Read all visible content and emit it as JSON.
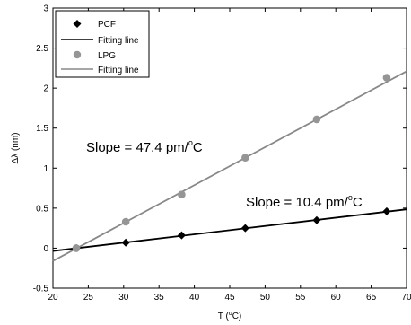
{
  "chart_data": {
    "type": "scatter",
    "xlabel_main": "T (",
    "xlabel_sup": "o",
    "xlabel_tail": "C)",
    "ylabel": "Δλ (nm)",
    "xlim": [
      20,
      70
    ],
    "ylim": [
      -0.5,
      3
    ],
    "xticks": [
      20,
      25,
      30,
      35,
      40,
      45,
      50,
      55,
      60,
      65,
      70
    ],
    "yticks": [
      -0.5,
      0,
      0.5,
      1,
      1.5,
      2,
      2.5,
      3
    ],
    "xtick_labels": [
      "20",
      "25",
      "30",
      "35",
      "40",
      "45",
      "50",
      "55",
      "60",
      "65",
      "70"
    ],
    "ytick_labels": [
      "-0.5",
      "0",
      "0.5",
      "1",
      "1.5",
      "2",
      "2.5",
      "3"
    ],
    "grid": false,
    "legend_position": "top-left",
    "series": [
      {
        "name": "PCF",
        "marker": "diamond",
        "color": "#000000",
        "x": [
          23.3,
          30.3,
          38.2,
          47.2,
          57.3,
          67.2
        ],
        "y": [
          0.0,
          0.07,
          0.16,
          0.25,
          0.35,
          0.46
        ]
      },
      {
        "name": "Fitting line",
        "kind": "line",
        "color": "#000000",
        "x": [
          20,
          70
        ],
        "y": [
          -0.035,
          0.485
        ]
      },
      {
        "name": "LPG",
        "marker": "circle",
        "color": "#959595",
        "x": [
          23.3,
          30.3,
          38.2,
          47.2,
          57.3,
          67.2
        ],
        "y": [
          0.0,
          0.33,
          0.67,
          1.13,
          1.61,
          2.13
        ]
      },
      {
        "name": "Fitting line",
        "kind": "line",
        "color": "#888888",
        "x": [
          20,
          70
        ],
        "y": [
          -0.16,
          2.21
        ]
      }
    ],
    "annotations": [
      {
        "id": "lpg",
        "text_main": "Slope = 47.4 pm/",
        "text_sup": "o",
        "text_tail": "C"
      },
      {
        "id": "pcf",
        "text_main": "Slope = 10.4 pm/",
        "text_sup": "o",
        "text_tail": "C"
      }
    ]
  }
}
